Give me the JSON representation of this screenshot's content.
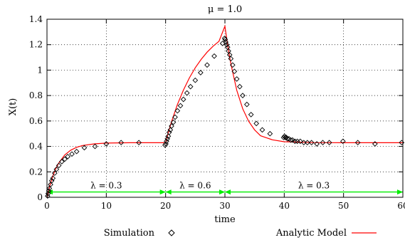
{
  "chart_data": {
    "type": "line",
    "title": "μ = 1.0",
    "xlabel": "time",
    "ylabel": "X(t)",
    "xlim": [
      0,
      60
    ],
    "ylim": [
      0,
      1.4
    ],
    "xticks": [
      0,
      10,
      20,
      30,
      40,
      50,
      60
    ],
    "yticks": [
      0,
      0.2,
      0.4,
      0.6,
      0.8,
      1.0,
      1.2,
      1.4
    ],
    "ytick_labels": [
      "0",
      "0.2",
      "0.4",
      "0.6",
      "0.8",
      "1",
      "1.2",
      "1.4"
    ],
    "grid": true,
    "legend_position": "bottom",
    "series": [
      {
        "name": "Analytic Model",
        "style": "line",
        "color": "#ff0000",
        "x": [
          0,
          0.5,
          1,
          1.5,
          2,
          3,
          4,
          5,
          6,
          8,
          10,
          14,
          20,
          20.5,
          21,
          22,
          23,
          24,
          25,
          26,
          27,
          28,
          29,
          30,
          30.5,
          31,
          32,
          33,
          34,
          35,
          36,
          37,
          38,
          40,
          45,
          50,
          55,
          60
        ],
        "y": [
          0,
          0.094,
          0.168,
          0.226,
          0.271,
          0.333,
          0.37,
          0.393,
          0.407,
          0.42,
          0.426,
          0.429,
          0.429,
          0.515,
          0.595,
          0.73,
          0.843,
          0.938,
          1.018,
          1.085,
          1.141,
          1.188,
          1.227,
          1.345,
          1.184,
          1.05,
          0.84,
          0.696,
          0.598,
          0.53,
          0.484,
          0.468,
          0.452,
          0.437,
          0.43,
          0.429,
          0.429,
          0.429
        ]
      },
      {
        "name": "Simulation",
        "style": "markers",
        "marker": "diamond",
        "color": "#000000",
        "x": [
          0.1,
          0.2,
          0.3,
          0.4,
          0.6,
          0.8,
          1.0,
          1.3,
          1.6,
          2.0,
          2.5,
          3.0,
          3.5,
          4.2,
          5.0,
          6.3,
          8.1,
          10.0,
          12.5,
          15.5,
          19.9,
          20.05,
          20.15,
          20.3,
          20.45,
          20.6,
          20.8,
          21.0,
          21.3,
          21.6,
          22.0,
          22.5,
          23.0,
          23.6,
          24.2,
          25.0,
          25.9,
          27.0,
          28.2,
          29.6,
          29.95,
          30.05,
          30.15,
          30.3,
          30.45,
          30.6,
          30.8,
          31.0,
          31.3,
          31.6,
          32.0,
          32.5,
          33.0,
          33.7,
          34.4,
          35.3,
          36.3,
          37.6,
          39.9,
          40.05,
          40.2,
          40.35,
          40.55,
          40.8,
          41.1,
          41.4,
          41.8,
          42.2,
          42.7,
          43.3,
          43.9,
          44.6,
          45.5,
          46.5,
          47.6,
          49.9,
          52.4,
          55.3,
          59.8
        ],
        "y": [
          0.01,
          0.03,
          0.05,
          0.07,
          0.1,
          0.13,
          0.15,
          0.19,
          0.22,
          0.25,
          0.28,
          0.3,
          0.32,
          0.34,
          0.36,
          0.39,
          0.4,
          0.42,
          0.43,
          0.43,
          0.41,
          0.42,
          0.44,
          0.46,
          0.48,
          0.51,
          0.53,
          0.56,
          0.59,
          0.63,
          0.68,
          0.72,
          0.77,
          0.82,
          0.87,
          0.92,
          0.98,
          1.04,
          1.11,
          1.21,
          1.25,
          1.24,
          1.22,
          1.2,
          1.18,
          1.15,
          1.12,
          1.09,
          1.04,
          0.99,
          0.93,
          0.87,
          0.8,
          0.73,
          0.65,
          0.58,
          0.53,
          0.5,
          0.47,
          0.48,
          0.47,
          0.47,
          0.46,
          0.46,
          0.45,
          0.45,
          0.44,
          0.44,
          0.44,
          0.43,
          0.43,
          0.43,
          0.42,
          0.43,
          0.43,
          0.44,
          0.43,
          0.42,
          0.43
        ]
      }
    ],
    "annotations": [
      {
        "label": "λ = 0.3",
        "x_from": 0,
        "x_to": 20,
        "y": 0.12,
        "color": "#00ee00"
      },
      {
        "label": "λ = 0.6",
        "x_from": 20,
        "x_to": 30,
        "y": 0.12,
        "color": "#00ee00"
      },
      {
        "label": "λ = 0.3",
        "x_from": 30,
        "x_to": 60,
        "y": 0.12,
        "color": "#00ee00"
      }
    ]
  },
  "legend": {
    "simulation_label": "Simulation",
    "analytic_label": "Analytic Model"
  }
}
